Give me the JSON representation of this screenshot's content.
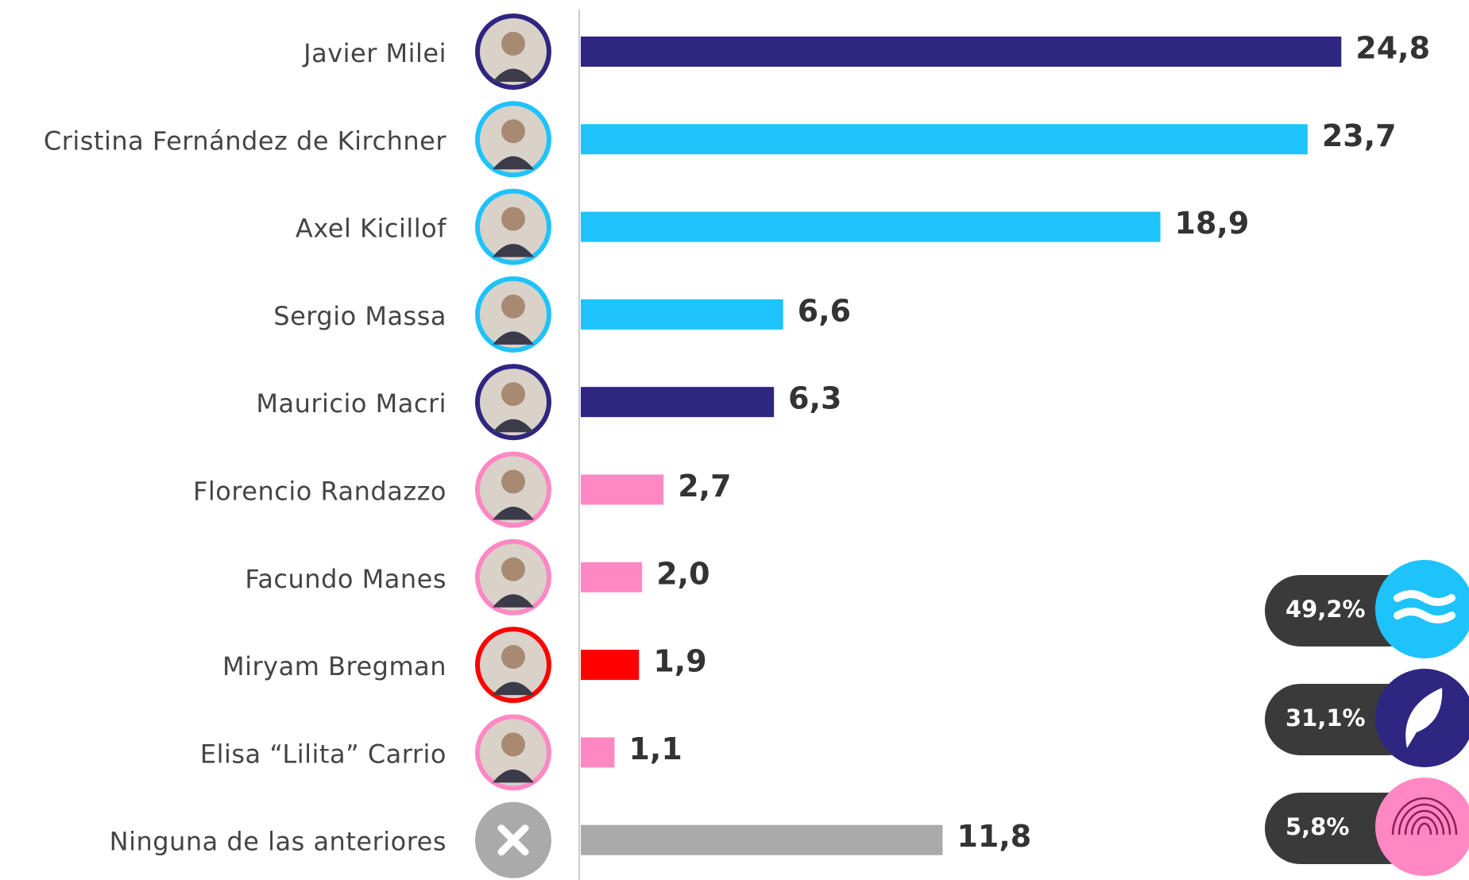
{
  "chart_data": {
    "type": "bar",
    "orientation": "horizontal",
    "categories": [
      "Javier Milei",
      "Cristina Fernández de Kirchner",
      "Axel Kicillof",
      "Sergio Massa",
      "Mauricio Macri",
      "Florencio Randazzo",
      "Facundo Manes",
      "Miryam Bregman",
      "Elisa “Lilita” Carrio",
      "Ninguna de las anteriores"
    ],
    "values": [
      24.8,
      23.7,
      18.9,
      6.6,
      6.3,
      2.7,
      2.0,
      1.9,
      1.1,
      11.8
    ],
    "value_labels": [
      "24,8",
      "23,7",
      "18,9",
      "6,6",
      "6,3",
      "2,7",
      "2,0",
      "1,9",
      "1,1",
      "11,8"
    ],
    "colors": [
      "#2e2680",
      "#1fc3fb",
      "#1fc3fb",
      "#1fc3fb",
      "#2e2680",
      "#ff88c4",
      "#ff88c4",
      "#ff0000",
      "#ff88c4",
      "#aaaaaa"
    ],
    "annotations": [
      {
        "text": "49,2%",
        "color": "#1fc3fb"
      },
      {
        "text": "31,1%",
        "color": "#2e2680"
      },
      {
        "text": "5,8%",
        "color": "#ff88c4"
      }
    ]
  }
}
